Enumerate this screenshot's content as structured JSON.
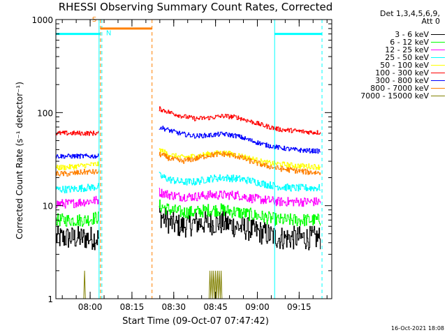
{
  "chart_data": {
    "type": "line",
    "title": "RHESSI Observing Summary Count Rates, Corrected",
    "xlabel": "Start Time (09-Oct-07 07:47:42)",
    "ylabel": "Corrected Count Rate (s⁻¹ detector⁻¹)",
    "yscale": "log",
    "ylim": [
      1,
      1000
    ],
    "y_tick_labels": [
      "1",
      "10",
      "100",
      "1000"
    ],
    "y_ticks": [
      1,
      10,
      100,
      1000
    ],
    "xlim_minutes": [
      0,
      99
    ],
    "x_tick_labels": [
      "08:00",
      "08:15",
      "08:30",
      "08:45",
      "09:00",
      "09:15"
    ],
    "x_tick_minutes": [
      12.3,
      27.3,
      42.3,
      57.3,
      72.3,
      87.3
    ],
    "legend_title": [
      "Det 1,3,4,5,6,9,",
      "Att 0"
    ],
    "datestamp": "16-Oct-2021 18:08",
    "annotations": [
      {
        "text": "S",
        "color": "#ff8000",
        "minute": 13,
        "y": 950
      },
      {
        "text": "N",
        "color": "#00ffff",
        "minute": 18,
        "y": 680
      }
    ],
    "flag_bars": [
      {
        "name": "night",
        "color": "#00ffff",
        "start": 0,
        "end": 16,
        "y": 700
      },
      {
        "name": "night",
        "color": "#00ffff",
        "start": 78.5,
        "end": 95.5,
        "y": 700
      },
      {
        "name": "saa",
        "color": "#ff8000",
        "start": 16,
        "end": 34.5,
        "y": 800
      }
    ],
    "flag_lines": [
      {
        "color": "#00ffff",
        "minute": 15.5,
        "style": "solid"
      },
      {
        "color": "#00ffff",
        "minute": 16.5,
        "style": "dashed"
      },
      {
        "color": "#ff8000",
        "minute": 16,
        "style": "dashed"
      },
      {
        "color": "#ff8000",
        "minute": 34.5,
        "style": "dashed"
      },
      {
        "color": "#00ffff",
        "minute": 78.5,
        "style": "solid"
      },
      {
        "color": "#00ffff",
        "minute": 95.5,
        "style": "dashed"
      }
    ],
    "data_gap_minutes": [
      15.5,
      37
    ],
    "series": [
      {
        "name": "3 - 6 keV",
        "color": "#000000",
        "noise": 0.13,
        "x": [
          0,
          5,
          10,
          15.4,
          37,
          41,
          45,
          50,
          55,
          60,
          65,
          70,
          75,
          80,
          85,
          90,
          95
        ],
        "y": [
          4.5,
          4.5,
          4.5,
          4.5,
          8,
          6.5,
          6,
          6.5,
          6.5,
          6.5,
          6,
          5.5,
          5,
          4.5,
          4.5,
          4.5,
          4.5
        ]
      },
      {
        "name": "6 - 12 keV",
        "color": "#00ff00",
        "noise": 0.07,
        "x": [
          0,
          5,
          10,
          15.4,
          37,
          41,
          45,
          50,
          55,
          60,
          65,
          70,
          75,
          80,
          85,
          90,
          95
        ],
        "y": [
          7,
          7,
          7,
          7.5,
          10,
          9,
          8.5,
          8.5,
          9,
          9,
          8.5,
          8,
          7.5,
          7,
          7,
          7,
          7
        ]
      },
      {
        "name": "12 - 25 keV",
        "color": "#ff00ff",
        "noise": 0.05,
        "x": [
          0,
          5,
          10,
          15.4,
          37,
          41,
          45,
          50,
          55,
          60,
          65,
          70,
          75,
          80,
          85,
          90,
          95
        ],
        "y": [
          10.5,
          10.5,
          11,
          11.5,
          14,
          13,
          12.5,
          12.5,
          13,
          13,
          13,
          12,
          11.5,
          11,
          11,
          11,
          11
        ]
      },
      {
        "name": "25 - 50 keV",
        "color": "#00ffff",
        "noise": 0.04,
        "x": [
          0,
          5,
          10,
          15.4,
          37,
          41,
          45,
          50,
          55,
          60,
          65,
          70,
          75,
          80,
          85,
          90,
          95
        ],
        "y": [
          15,
          15,
          15.5,
          16,
          21,
          19,
          18,
          18,
          19.5,
          20,
          19.5,
          18.5,
          17,
          16,
          15.5,
          15.5,
          15.5
        ]
      },
      {
        "name": "50 - 100 keV",
        "color": "#ffff00",
        "noise": 0.03,
        "x": [
          0,
          5,
          10,
          15.4,
          37,
          41,
          45,
          50,
          55,
          60,
          65,
          70,
          75,
          80,
          85,
          90,
          95
        ],
        "y": [
          25.5,
          26,
          27,
          28,
          40,
          35,
          33,
          34,
          36,
          37,
          35,
          32,
          29,
          28,
          27,
          26.5,
          26
        ]
      },
      {
        "name": "100 - 300 keV",
        "color": "#ff0000",
        "noise": 0.025,
        "x": [
          0,
          5,
          10,
          15.4,
          37,
          41,
          45,
          50,
          55,
          60,
          65,
          70,
          75,
          80,
          85,
          90,
          95
        ],
        "y": [
          60,
          60,
          60,
          60,
          110,
          100,
          92,
          86,
          88,
          92,
          89,
          80,
          72,
          66,
          64,
          62,
          61
        ]
      },
      {
        "name": "300 - 800 keV",
        "color": "#0000ff",
        "noise": 0.025,
        "x": [
          0,
          5,
          10,
          15.4,
          37,
          41,
          45,
          50,
          55,
          60,
          65,
          70,
          75,
          80,
          85,
          90,
          95
        ],
        "y": [
          34,
          34,
          34,
          34,
          70,
          64,
          59,
          56,
          57,
          59,
          56,
          50,
          45,
          42,
          40,
          39,
          38.5
        ]
      },
      {
        "name": "800 - 7000 keV",
        "color": "#ff8000",
        "noise": 0.03,
        "x": [
          0,
          5,
          10,
          15.4,
          37,
          41,
          45,
          50,
          55,
          60,
          65,
          70,
          75,
          80,
          85,
          90,
          95
        ],
        "y": [
          22,
          22,
          23,
          23,
          36,
          32,
          30,
          32,
          35,
          36,
          34,
          30,
          27,
          25,
          24,
          23,
          22.5
        ]
      },
      {
        "name": "7000 - 15000 keV",
        "color": "#808000",
        "noise": 0,
        "x": [
          10,
          10.3,
          10.6,
          55,
          55.3,
          55.6,
          56,
          56.3,
          56.6,
          57,
          57.3,
          57.6,
          58,
          58.3,
          58.6,
          59,
          59.3,
          59.6
        ],
        "y": [
          1,
          2,
          1,
          1,
          2,
          1,
          2,
          1,
          2,
          1,
          2,
          1,
          2,
          1,
          2,
          1,
          2,
          1
        ]
      }
    ]
  }
}
